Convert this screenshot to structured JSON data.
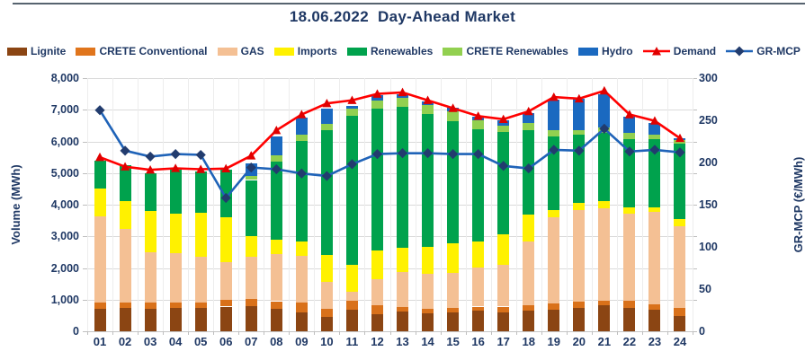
{
  "page_title": "18.06.2022  Day-Ahead Market",
  "ui_colors": {
    "text_navy": "#1F3864",
    "top_rule": "#57636f",
    "gridline": "#DADADA",
    "baseline": "#C6C6C6",
    "background": "#FFFFFF"
  },
  "chart_data": {
    "type": "combo-stacked-bar-line",
    "title": "18.06.2022  Day-Ahead Market",
    "categories": [
      "01",
      "02",
      "03",
      "04",
      "05",
      "06",
      "07",
      "08",
      "09",
      "10",
      "11",
      "12",
      "13",
      "14",
      "15",
      "16",
      "17",
      "18",
      "19",
      "20",
      "21",
      "22",
      "23",
      "24"
    ],
    "series": [
      {
        "name": "Lignite",
        "color": "#8B4513",
        "values": [
          720,
          730,
          720,
          730,
          750,
          780,
          800,
          700,
          590,
          450,
          690,
          550,
          620,
          560,
          590,
          640,
          590,
          640,
          690,
          750,
          810,
          750,
          690,
          490
        ]
      },
      {
        "name": "CRETE Conventional",
        "color": "#D9711A",
        "values": [
          200,
          180,
          200,
          180,
          170,
          210,
          220,
          250,
          330,
          260,
          280,
          280,
          140,
          150,
          140,
          140,
          190,
          190,
          190,
          190,
          160,
          220,
          160,
          240
        ]
      },
      {
        "name": "GAS",
        "color": "#F4C094",
        "values": [
          2700,
          2320,
          1570,
          1560,
          1430,
          1190,
          1330,
          1480,
          1460,
          860,
          290,
          810,
          1120,
          1110,
          1100,
          1240,
          1320,
          2000,
          2710,
          2890,
          2910,
          2760,
          2930,
          2580
        ]
      },
      {
        "name": "Imports",
        "color": "#FFF100",
        "values": [
          880,
          870,
          1310,
          1260,
          1390,
          1420,
          650,
          470,
          450,
          830,
          850,
          900,
          750,
          840,
          950,
          810,
          950,
          860,
          240,
          240,
          230,
          190,
          140,
          230
        ]
      },
      {
        "name": "Renewables",
        "color": "#00A24D",
        "values": [
          900,
          1150,
          1200,
          1370,
          1310,
          1500,
          1780,
          2450,
          3190,
          3960,
          4690,
          4500,
          4470,
          4210,
          3850,
          3560,
          3260,
          2660,
          2330,
          2140,
          2150,
          2150,
          2150,
          2380
        ]
      },
      {
        "name": "CRETE Renewables",
        "color": "#92D050",
        "values": [
          0,
          0,
          0,
          0,
          0,
          0,
          140,
          200,
          200,
          190,
          230,
          240,
          290,
          280,
          310,
          290,
          180,
          240,
          190,
          140,
          190,
          190,
          140,
          130
        ]
      },
      {
        "name": "Hydro",
        "color": "#1A69C0",
        "values": [
          0,
          0,
          0,
          0,
          0,
          0,
          390,
          600,
          530,
          480,
          100,
          190,
          110,
          100,
          110,
          100,
          170,
          300,
          960,
          1000,
          1050,
          520,
          380,
          60
        ]
      }
    ],
    "lines": [
      {
        "name": "Demand",
        "axis": "left",
        "color": "#FF0000",
        "marker": "triangle",
        "marker_color": "#E00000",
        "values": [
          5500,
          5200,
          5100,
          5150,
          5120,
          5140,
          5550,
          6350,
          6850,
          7200,
          7300,
          7500,
          7550,
          7300,
          7050,
          6800,
          6700,
          6950,
          7400,
          7350,
          7600,
          6850,
          6650,
          6100
        ]
      },
      {
        "name": "GR-MCP",
        "axis": "right",
        "color": "#1F63B8",
        "marker": "diamond",
        "marker_color": "#223C6E",
        "values": [
          262,
          214,
          207,
          210,
          209,
          158,
          194,
          192,
          187,
          184,
          198,
          210,
          211,
          211,
          210,
          210,
          196,
          193,
          215,
          214,
          240,
          213,
          215,
          212
        ]
      }
    ],
    "y_left": {
      "label": "Volume (MWh)",
      "min": 0,
      "max": 8000,
      "step": 1000,
      "tick_labels": [
        "0",
        "1,000",
        "2,000",
        "3,000",
        "4,000",
        "5,000",
        "6,000",
        "7,000",
        "8,000"
      ]
    },
    "y_right": {
      "label": "GR-MCP (€/MWh)",
      "min": 0,
      "max": 300,
      "step": 50,
      "tick_labels": [
        "0",
        "50",
        "100",
        "150",
        "200",
        "250",
        "300"
      ]
    },
    "legend": [
      {
        "label": "Lignite",
        "type": "rect",
        "color": "#8B4513"
      },
      {
        "label": "CRETE Conventional",
        "type": "rect",
        "color": "#E0751C"
      },
      {
        "label": "GAS",
        "type": "rect",
        "color": "#F4C094"
      },
      {
        "label": "Imports",
        "type": "rect",
        "color": "#FFF100"
      },
      {
        "label": "Renewables",
        "type": "rect",
        "color": "#00A24D"
      },
      {
        "label": "CRETE Renewables",
        "type": "rect",
        "color": "#92D050"
      },
      {
        "label": "Hydro",
        "type": "rect",
        "color": "#1A69C0"
      },
      {
        "label": "Demand",
        "type": "line-triangle",
        "color": "#FF0000",
        "marker_color": "#E00000"
      },
      {
        "label": "GR-MCP",
        "type": "line-diamond",
        "color": "#1F63B8",
        "marker_color": "#223C6E"
      }
    ],
    "grid": "horizontal+faint-vertical",
    "legend_position": "top"
  }
}
